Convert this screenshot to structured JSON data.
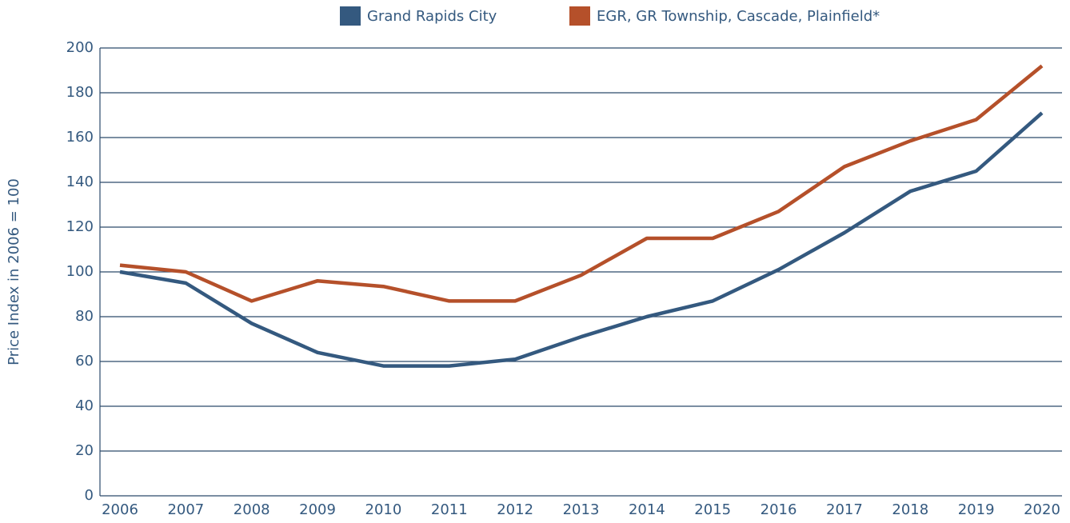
{
  "chart_data": {
    "type": "line",
    "ylabel": "Price Index in 2006 = 100",
    "categories": [
      "2006",
      "2007",
      "2008",
      "2009",
      "2010",
      "2011",
      "2012",
      "2013",
      "2014",
      "2015",
      "2016",
      "2017",
      "2018",
      "2019",
      "2020"
    ],
    "series": [
      {
        "name": "Grand Rapids City",
        "color": "#34597f",
        "values": [
          100,
          95,
          77,
          64,
          58,
          58,
          61,
          71,
          80,
          87,
          101,
          117.5,
          136,
          145,
          171
        ]
      },
      {
        "name": "EGR, GR Township, Cascade, Plainfield*",
        "color": "#b5502a",
        "values": [
          103,
          100,
          87,
          96,
          93.5,
          87,
          87,
          98.5,
          115,
          115,
          127,
          147,
          158.5,
          168,
          192
        ]
      }
    ],
    "ylim": [
      0,
      200
    ],
    "yticks": [
      0,
      20,
      40,
      60,
      80,
      100,
      120,
      140,
      160,
      180,
      200
    ],
    "grid": true
  }
}
